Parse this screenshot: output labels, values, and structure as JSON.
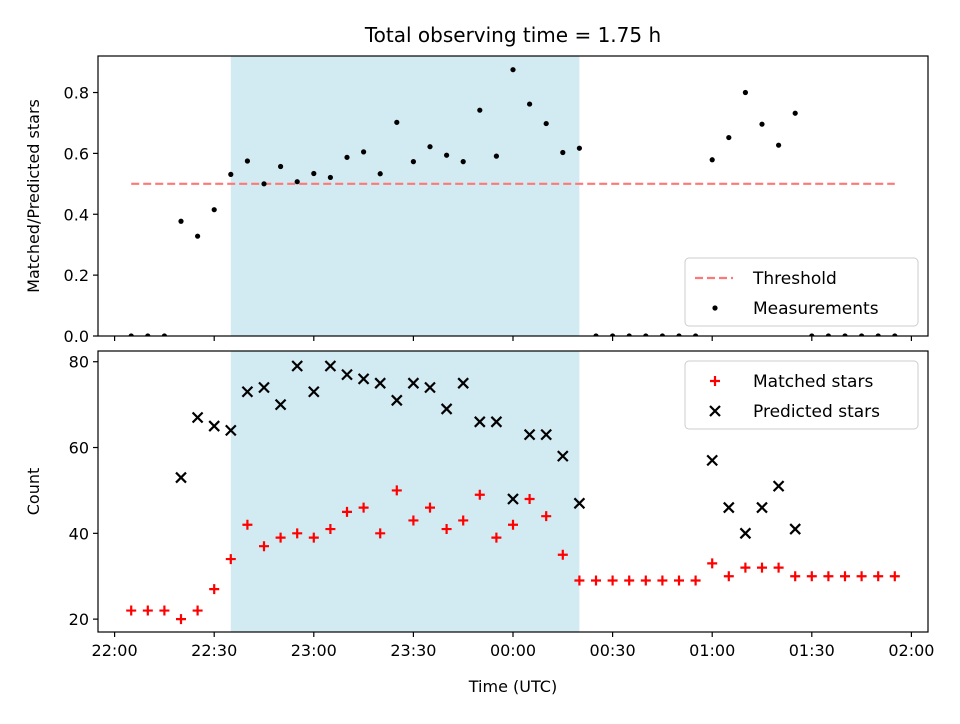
{
  "chart_data": [
    {
      "type": "scatter",
      "title": "Total observing time = 1.75 h",
      "xlabel": "",
      "ylabel": "Matched/Predicted stars",
      "ylim": [
        0,
        0.92
      ],
      "yticks": [
        0.0,
        0.2,
        0.4,
        0.6,
        0.8
      ],
      "ytick_labels": [
        "0.0",
        "0.2",
        "0.4",
        "0.6",
        "0.8"
      ],
      "xlim_minutes_since_2200": [
        -5,
        245
      ],
      "xticks_minutes_since_2200": [
        0,
        30,
        60,
        90,
        120,
        150,
        180,
        210,
        240
      ],
      "shaded_span_minutes_since_2200": [
        35,
        140
      ],
      "shaded_color": "#add8e6",
      "grid": false,
      "legend_position": "lower-right",
      "threshold": {
        "name": "Threshold",
        "value": 0.5,
        "x_range": [
          5,
          235
        ],
        "color": "#ff7777",
        "style": "dashed"
      },
      "series": [
        {
          "name": "Measurements",
          "color": "#000000",
          "marker": "dot",
          "x": [
            5,
            10,
            15,
            20,
            25,
            30,
            35,
            40,
            45,
            50,
            55,
            60,
            65,
            70,
            75,
            80,
            85,
            90,
            95,
            100,
            105,
            110,
            115,
            120,
            125,
            130,
            135,
            140,
            145,
            150,
            155,
            160,
            165,
            170,
            175,
            180,
            185,
            190,
            195,
            200,
            205,
            210,
            215,
            220,
            225,
            230,
            235
          ],
          "y": [
            0,
            0,
            0,
            0.377,
            0.328,
            0.415,
            0.531,
            0.575,
            0.5,
            0.557,
            0.507,
            0.534,
            0.521,
            0.587,
            0.605,
            0.533,
            0.702,
            0.573,
            0.622,
            0.594,
            0.573,
            0.742,
            0.591,
            0.875,
            0.762,
            0.698,
            0.603,
            0.617,
            0,
            0,
            0,
            0,
            0,
            0,
            0,
            0.579,
            0.652,
            0.8,
            0.696,
            0.627,
            0.732,
            0,
            0,
            0,
            0,
            0,
            0
          ]
        }
      ]
    },
    {
      "type": "scatter",
      "title": "",
      "xlabel": "Time (UTC)",
      "ylabel": "Count",
      "ylim": [
        17,
        82.5
      ],
      "yticks": [
        20,
        40,
        60,
        80
      ],
      "ytick_labels": [
        "20",
        "40",
        "60",
        "80"
      ],
      "xlim_minutes_since_2200": [
        -5,
        245
      ],
      "xticks_minutes_since_2200": [
        0,
        30,
        60,
        90,
        120,
        150,
        180,
        210,
        240
      ],
      "xtick_labels": [
        "22:00",
        "22:30",
        "23:00",
        "23:30",
        "00:00",
        "00:30",
        "01:00",
        "01:30",
        "02:00"
      ],
      "shaded_span_minutes_since_2200": [
        35,
        140
      ],
      "shaded_color": "#add8e6",
      "grid": false,
      "legend_position": "upper-right",
      "series": [
        {
          "name": "Matched stars",
          "color": "#ff0000",
          "marker": "plus",
          "x": [
            5,
            10,
            15,
            20,
            25,
            30,
            35,
            40,
            45,
            50,
            55,
            60,
            65,
            70,
            75,
            80,
            85,
            90,
            95,
            100,
            105,
            110,
            115,
            120,
            125,
            130,
            135,
            140,
            145,
            150,
            155,
            160,
            165,
            170,
            175,
            180,
            185,
            190,
            195,
            200,
            205,
            210,
            215,
            220,
            225,
            230,
            235
          ],
          "y": [
            22,
            22,
            22,
            20,
            22,
            27,
            34,
            42,
            37,
            39,
            40,
            39,
            41,
            45,
            46,
            40,
            50,
            43,
            46,
            41,
            43,
            49,
            39,
            42,
            48,
            44,
            35,
            29,
            29,
            29,
            29,
            29,
            29,
            29,
            29,
            33,
            30,
            32,
            32,
            32,
            30,
            30,
            30,
            30,
            30,
            30,
            30
          ]
        },
        {
          "name": "Predicted stars",
          "color": "#000000",
          "marker": "x",
          "x": [
            20,
            25,
            30,
            35,
            40,
            45,
            50,
            55,
            60,
            65,
            70,
            75,
            80,
            85,
            90,
            95,
            100,
            105,
            110,
            115,
            120,
            125,
            130,
            135,
            140,
            180,
            185,
            190,
            195,
            200,
            205
          ],
          "y": [
            53,
            67,
            65,
            64,
            73,
            74,
            70,
            79,
            73,
            79,
            77,
            76,
            75,
            71,
            75,
            74,
            69,
            75,
            66,
            66,
            48,
            63,
            63,
            58,
            47,
            57,
            46,
            40,
            46,
            51,
            41
          ]
        }
      ]
    }
  ]
}
